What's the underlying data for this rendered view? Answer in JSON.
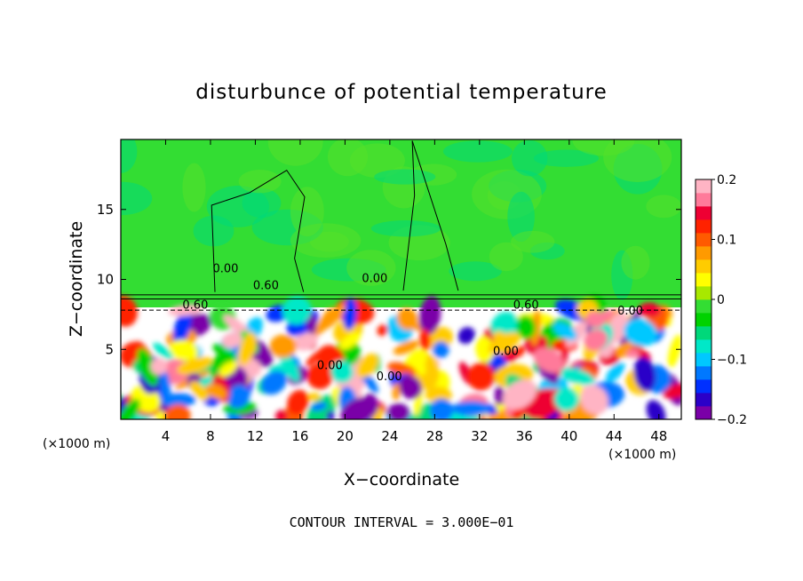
{
  "chart_data": {
    "type": "heatmap",
    "title": "disturbunce of potential temperature",
    "xlabel": "X−coordinate",
    "ylabel": "Z−coordinate",
    "x_unit_left": "(×1000 m)",
    "x_unit_right": "(×1000 m)",
    "footer": "CONTOUR INTERVAL = 3.000E−01",
    "xlim": [
      0,
      50
    ],
    "ylim": [
      0,
      20
    ],
    "x_ticks": [
      4,
      8,
      12,
      16,
      20,
      24,
      28,
      32,
      36,
      40,
      44,
      48
    ],
    "y_ticks": [
      5,
      10,
      15
    ],
    "x_tick_labels": [
      "4",
      "8",
      "12",
      "16",
      "20",
      "24",
      "28",
      "32",
      "36",
      "40",
      "44",
      "48"
    ],
    "y_tick_labels": [
      "5",
      "10",
      "15"
    ],
    "colorbar": {
      "range": [
        -0.2,
        0.2
      ],
      "tick_labels": [
        "0.2",
        "0.1",
        "0",
        "−0.1",
        "−0.2"
      ],
      "colors": [
        "#7a00a8",
        "#2b00c8",
        "#0030ff",
        "#0078ff",
        "#00c8ff",
        "#00e8c8",
        "#00d87a",
        "#00d200",
        "#33dd33",
        "#a8e800",
        "#ffff00",
        "#ffcc00",
        "#ff9a00",
        "#ff5a00",
        "#ff2200",
        "#ee0033",
        "#ff7a9a",
        "#ffb4c4"
      ]
    },
    "contour_labels": [
      "0.60",
      "0.60",
      "0.60",
      "0.00",
      "0.00",
      "0.00",
      "0.00",
      "0.00",
      "0.00"
    ],
    "upper_layer": {
      "z_range": [
        9,
        20
      ],
      "value": 0.0
    },
    "lower_layer": {
      "z_range": [
        0,
        8
      ],
      "pattern": "turbulent mix of -0.2 to 0.2"
    }
  }
}
